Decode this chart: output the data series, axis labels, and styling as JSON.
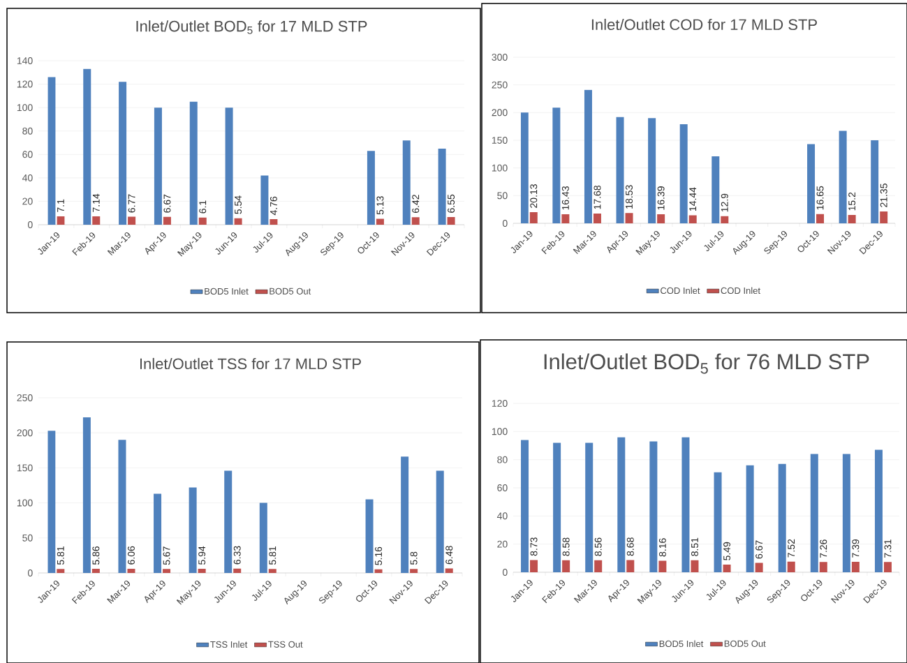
{
  "chart_data": [
    {
      "type": "bar",
      "title": "Inlet/Outlet BOD$_{5}$ for 17 MLD STP",
      "categories": [
        "Jan-19",
        "Feb-19",
        "Mar-19",
        "Apr-19",
        "May-19",
        "Jun-19",
        "Jul-19",
        "Aug-19",
        "Sep-19",
        "Oct-19",
        "Nov-19",
        "Dec-19"
      ],
      "series": [
        {
          "name": "BOD5 Inlet",
          "color": "#4f81bd",
          "values": [
            126,
            133,
            122,
            100,
            105,
            100,
            42,
            null,
            null,
            63,
            72,
            65
          ]
        },
        {
          "name": "BOD5 Out",
          "color": "#c0504d",
          "values": [
            7.1,
            7.14,
            6.77,
            6.67,
            6.1,
            5.54,
            4.76,
            null,
            null,
            5.13,
            6.42,
            6.55
          ],
          "value_labels": [
            "7.1",
            "7.14",
            "6.77",
            "6.67",
            "6.1",
            "5.54",
            "4.76",
            null,
            null,
            "5.13",
            "6.42",
            "6.55"
          ]
        }
      ],
      "ylim": [
        0,
        140
      ],
      "yticks": [
        0,
        20,
        40,
        60,
        80,
        100,
        120,
        140
      ],
      "grid": "y",
      "legend": "bottom"
    },
    {
      "type": "bar",
      "title": "Inlet/Outlet COD for 17 MLD STP",
      "categories": [
        "Jan-19",
        "Feb-19",
        "Mar-19",
        "Apr-19",
        "May-19",
        "Jun-19",
        "Jul-19",
        "Aug-19",
        "Sep-19",
        "Oct-19",
        "Nov-19",
        "Dec-19"
      ],
      "series": [
        {
          "name": "COD Inlet",
          "color": "#4f81bd",
          "values": [
            200,
            209,
            241,
            192,
            190,
            179,
            121,
            null,
            null,
            143,
            167,
            150
          ]
        },
        {
          "name": "COD Inlet",
          "color": "#c0504d",
          "values": [
            20.13,
            16.43,
            17.68,
            18.53,
            16.39,
            14.44,
            12.9,
            null,
            null,
            16.65,
            15.2,
            21.35
          ],
          "value_labels": [
            "20.13",
            "16.43",
            "17.68",
            "18.53",
            "16.39",
            "14.44",
            "12.9",
            null,
            null,
            "16.65",
            "15.2",
            "21.35"
          ]
        }
      ],
      "ylim": [
        0,
        300
      ],
      "yticks": [
        0,
        50,
        100,
        150,
        200,
        250,
        300
      ],
      "grid": "y",
      "legend": "bottom"
    },
    {
      "type": "bar",
      "title": "Inlet/Outlet TSS for 17 MLD STP",
      "categories": [
        "Jan-19",
        "Feb-19",
        "Mar-19",
        "Apr-19",
        "May-19",
        "Jun-19",
        "Jul-19",
        "Aug-19",
        "Sep-19",
        "Oct-19",
        "Nov-19",
        "Dec-19"
      ],
      "series": [
        {
          "name": "TSS Inlet",
          "color": "#4f81bd",
          "values": [
            203,
            222,
            190,
            113,
            122,
            146,
            100,
            null,
            null,
            105,
            166,
            146
          ]
        },
        {
          "name": "TSS Out",
          "color": "#c0504d",
          "values": [
            5.81,
            5.86,
            6.06,
            5.67,
            5.94,
            6.33,
            5.81,
            null,
            null,
            5.16,
            5.8,
            6.48
          ],
          "value_labels": [
            "5.81",
            "5.86",
            "6.06",
            "5.67",
            "5.94",
            "6.33",
            "5.81",
            null,
            null,
            "5.16",
            "5.8",
            "6.48"
          ]
        }
      ],
      "ylim": [
        0,
        250
      ],
      "yticks": [
        0,
        50,
        100,
        150,
        200,
        250
      ],
      "grid": "y",
      "legend": "bottom"
    },
    {
      "type": "bar",
      "title": "Inlet/Outlet BOD$_{5}$ for 76 MLD STP",
      "categories": [
        "Jan-19",
        "Feb-19",
        "Mar-19",
        "Apr-19",
        "May-19",
        "Jun-19",
        "Jul-19",
        "Aug-19",
        "Sep-19",
        "Oct-19",
        "Nov-19",
        "Dec-19"
      ],
      "series": [
        {
          "name": "BOD5 Inlet",
          "color": "#4f81bd",
          "values": [
            94,
            92,
            92,
            96,
            93,
            96,
            71,
            76,
            77,
            84,
            84,
            87
          ]
        },
        {
          "name": "BOD5 Out",
          "color": "#c0504d",
          "values": [
            8.73,
            8.58,
            8.56,
            8.68,
            8.16,
            8.51,
            5.49,
            6.67,
            7.52,
            7.26,
            7.39,
            7.31
          ],
          "value_labels": [
            "8.73",
            "8.58",
            "8.56",
            "8.68",
            "8.16",
            "8.51",
            "5.49",
            "6.67",
            "7.52",
            "7.26",
            "7.39",
            "7.31"
          ]
        }
      ],
      "ylim": [
        0,
        120
      ],
      "yticks": [
        0,
        20,
        40,
        60,
        80,
        100,
        120
      ],
      "grid": "y",
      "legend": "bottom"
    }
  ]
}
